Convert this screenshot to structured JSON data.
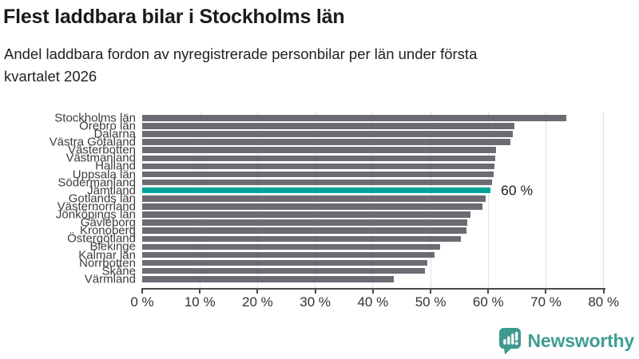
{
  "header": {
    "title": "Flest laddbara bilar i Stockholms län",
    "subtitle_lines": [
      "Andel laddbara fordon av nyregistrerade personbilar per län under första",
      "kvartalet 2026"
    ]
  },
  "chart_data": {
    "type": "bar",
    "orientation": "horizontal",
    "title": "Flest laddbara bilar i Stockholms län",
    "subtitle": "Andel laddbara fordon av nyregistrerade personbilar per län under första kvartalet 2026",
    "categories": [
      "Stockholms län",
      "Örebro län",
      "Dalarna",
      "Västra Götaland",
      "Västerbotten",
      "Västmanland",
      "Halland",
      "Uppsala län",
      "Södermanland",
      "Jämtland",
      "Gotlands län",
      "Västernorrland",
      "Jönköpings län",
      "Gävleborg",
      "Kronoberg",
      "Östergötland",
      "Blekinge",
      "Kalmar län",
      "Norrbotten",
      "Skåne",
      "Värmland"
    ],
    "values": [
      73.5,
      64.5,
      64.2,
      63.8,
      61.4,
      61.2,
      61.1,
      60.9,
      60.7,
      60.4,
      59.5,
      59.0,
      56.9,
      56.3,
      56.2,
      55.3,
      51.7,
      50.7,
      49.5,
      49.0,
      43.6
    ],
    "highlight": {
      "index": 9,
      "category": "Jämtland",
      "label": "60 %"
    },
    "xlabel": "",
    "ylabel": "",
    "xlim": [
      0,
      80
    ],
    "x_ticks": [
      0,
      10,
      20,
      30,
      40,
      50,
      60,
      70,
      80
    ],
    "x_tick_format": "{v} %",
    "grid": true,
    "legend": "none",
    "colors": {
      "bar": "#6c6b74",
      "highlight_bar": "#00a29a",
      "gridline": "#e2e2e2",
      "axis": "#4a4a4a"
    }
  },
  "footer": {
    "brand_name": "Newsworthy",
    "brand_color": "#3f9d92",
    "brand_icon": "bar-chart-speech-bubble-icon"
  }
}
